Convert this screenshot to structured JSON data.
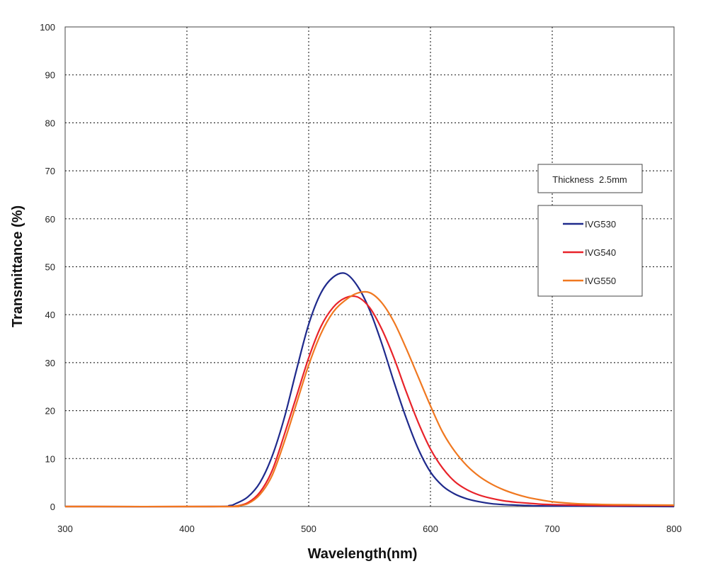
{
  "chart_data": {
    "type": "line",
    "xlabel": "Wavelength(nm)",
    "ylabel": "Transmittance (%)",
    "xlim": [
      300,
      800
    ],
    "ylim": [
      0,
      100
    ],
    "xticks": [
      "300",
      "400",
      "500",
      "600",
      "700",
      "800"
    ],
    "yticks": [
      "0",
      "10",
      "20",
      "30",
      "40",
      "50",
      "60",
      "70",
      "80",
      "90",
      "100"
    ],
    "grid": true,
    "annotation": "Thickness  2.5mm",
    "legend_position": "right",
    "series": [
      {
        "name": "IVG530",
        "color": "#1f2a8c",
        "x": [
          300,
          420,
          435,
          440,
          450,
          460,
          470,
          480,
          490,
          500,
          510,
          520,
          530,
          540,
          550,
          560,
          570,
          580,
          590,
          600,
          610,
          620,
          630,
          640,
          650,
          660,
          670,
          680,
          700,
          800
        ],
        "y": [
          0,
          0,
          0.2,
          0.6,
          2.0,
          5.0,
          10.5,
          18.5,
          28.5,
          38.0,
          44.5,
          47.8,
          48.6,
          46.0,
          41.0,
          34.0,
          26.0,
          18.5,
          12.0,
          7.2,
          4.3,
          2.6,
          1.6,
          1.0,
          0.6,
          0.4,
          0.3,
          0.2,
          0.1,
          0
        ]
      },
      {
        "name": "IVG540",
        "color": "#e8232a",
        "x": [
          300,
          430,
          440,
          450,
          460,
          470,
          480,
          490,
          500,
          510,
          520,
          530,
          540,
          550,
          560,
          570,
          580,
          590,
          600,
          610,
          620,
          630,
          640,
          650,
          660,
          670,
          680,
          690,
          700,
          720,
          750,
          800
        ],
        "y": [
          0,
          0,
          0.1,
          0.8,
          3.0,
          7.5,
          15.0,
          23.0,
          31.0,
          37.5,
          41.5,
          43.5,
          43.7,
          41.5,
          37.0,
          31.0,
          24.0,
          17.5,
          12.0,
          8.0,
          5.2,
          3.5,
          2.4,
          1.7,
          1.2,
          0.9,
          0.7,
          0.5,
          0.4,
          0.3,
          0.2,
          0.2
        ]
      },
      {
        "name": "IVG550",
        "color": "#f07820",
        "x": [
          300,
          430,
          440,
          450,
          460,
          470,
          480,
          490,
          500,
          510,
          520,
          530,
          540,
          550,
          560,
          570,
          580,
          590,
          600,
          610,
          620,
          630,
          640,
          650,
          660,
          670,
          680,
          690,
          700,
          720,
          750,
          800
        ],
        "y": [
          0,
          0,
          0.1,
          0.6,
          2.5,
          6.5,
          13.5,
          21.5,
          29.5,
          36.0,
          40.5,
          43.0,
          44.5,
          44.6,
          42.5,
          38.5,
          33.0,
          27.0,
          21.0,
          15.5,
          11.5,
          8.5,
          6.3,
          4.7,
          3.5,
          2.6,
          1.9,
          1.4,
          1.0,
          0.6,
          0.4,
          0.3
        ]
      }
    ]
  }
}
